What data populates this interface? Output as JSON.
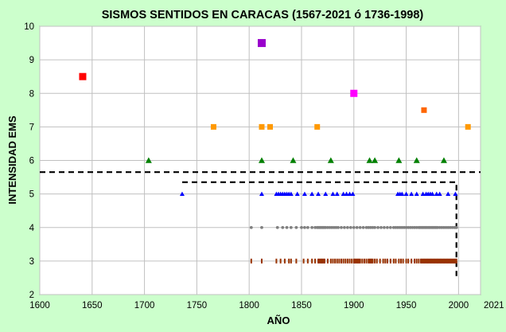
{
  "chart_data": {
    "type": "scatter",
    "title": "SISMOS SENTIDOS EN CARACAS (1567-2021 ó 1736-1998)",
    "xlabel": "AÑO",
    "ylabel": "INTENSIDAD EMS",
    "xlim": [
      1600,
      2021
    ],
    "ylim": [
      2,
      10
    ],
    "x_ticks": [
      1600,
      1650,
      1700,
      1750,
      1800,
      1850,
      1900,
      1950,
      2000,
      2021
    ],
    "y_ticks": [
      2,
      3,
      4,
      5,
      6,
      7,
      8,
      9,
      10
    ],
    "grid": true,
    "legend": "none",
    "colors": {
      "background": "#ccffcc",
      "plot_area": "#ffffff",
      "grid": "#c0c0c0",
      "int3": "#993300",
      "int4": "#808080",
      "int5": "#0000ff",
      "int6": "#008000",
      "int7": "#ff9900",
      "int7_5": "#ff6600",
      "int8": "#ff00ff",
      "int8_5": "#ff0000",
      "int9_5": "#9900cc"
    },
    "series": [
      {
        "intensity": 3,
        "marker": "tick",
        "color": "#993300",
        "x": [
          1802,
          1812,
          1826,
          1830,
          1834,
          1838,
          1840,
          1845,
          1852,
          1856,
          1860,
          1863,
          1866,
          1867,
          1868,
          1869,
          1870,
          1871,
          1872,
          1875,
          1878,
          1880,
          1882,
          1884,
          1886,
          1888,
          1890,
          1892,
          1894,
          1896,
          1898,
          1900,
          1901,
          1902,
          1903,
          1904,
          1905,
          1906,
          1908,
          1910,
          1912,
          1914,
          1915,
          1916,
          1917,
          1918,
          1920,
          1922,
          1925,
          1928,
          1930,
          1932,
          1935,
          1938,
          1940,
          1943,
          1945,
          1947,
          1950,
          1952,
          1955,
          1958,
          1960,
          1962,
          1964,
          1965,
          1966,
          1967,
          1968,
          1969,
          1970,
          1971,
          1972,
          1973,
          1974,
          1975,
          1976,
          1977,
          1978,
          1979,
          1980,
          1981,
          1982,
          1983,
          1984,
          1985,
          1986,
          1987,
          1988,
          1989,
          1990,
          1991,
          1992,
          1993,
          1994,
          1995,
          1996,
          1997,
          1998
        ],
        "y": 3
      },
      {
        "intensity": 4,
        "marker": "circle",
        "color": "#808080",
        "x": [
          1802,
          1812,
          1827,
          1832,
          1836,
          1840,
          1845,
          1850,
          1853,
          1856,
          1860,
          1863,
          1865,
          1866,
          1867,
          1868,
          1869,
          1870,
          1871,
          1872,
          1873,
          1875,
          1877,
          1879,
          1881,
          1883,
          1885,
          1888,
          1891,
          1894,
          1897,
          1900,
          1903,
          1906,
          1909,
          1912,
          1914,
          1916,
          1918,
          1920,
          1923,
          1926,
          1929,
          1932,
          1935,
          1938,
          1940,
          1942,
          1944,
          1946,
          1948,
          1950,
          1952,
          1954,
          1956,
          1958,
          1960,
          1962,
          1963,
          1964,
          1965,
          1966,
          1967,
          1968,
          1969,
          1970,
          1971,
          1972,
          1973,
          1974,
          1975,
          1976,
          1977,
          1978,
          1979,
          1980,
          1982,
          1984,
          1986,
          1988,
          1990,
          1992,
          1994,
          1996,
          1997,
          1998
        ],
        "y": 4
      },
      {
        "intensity": 5,
        "marker": "triangle",
        "color": "#0000ff",
        "x": [
          1736,
          1812,
          1826,
          1828,
          1830,
          1832,
          1834,
          1836,
          1838,
          1840,
          1846,
          1853,
          1860,
          1866,
          1873,
          1880,
          1884,
          1890,
          1893,
          1896,
          1899,
          1942,
          1944,
          1946,
          1950,
          1955,
          1960,
          1966,
          1969,
          1971,
          1973,
          1975,
          1979,
          1982,
          1990,
          1997
        ],
        "y": 5
      },
      {
        "intensity": 6,
        "marker": "triangle",
        "color": "#008000",
        "x": [
          1704,
          1812,
          1842,
          1878,
          1915,
          1920,
          1943,
          1960,
          1986
        ],
        "y": 6
      },
      {
        "intensity": 7,
        "marker": "square",
        "color": "#ff9900",
        "x": [
          1766,
          1812,
          1820,
          1865,
          2009
        ],
        "y": 7
      },
      {
        "intensity": 7.5,
        "marker": "square",
        "color": "#ff6600",
        "x": [
          1967
        ],
        "y": 7.5
      },
      {
        "intensity": 8,
        "marker": "square",
        "color": "#ff00ff",
        "x": [
          1900
        ],
        "y": 8
      },
      {
        "intensity": 8.5,
        "marker": "square",
        "color": "#ff0000",
        "x": [
          1641
        ],
        "y": 8.5
      },
      {
        "intensity": 9.5,
        "marker": "square",
        "color": "#9900cc",
        "x": [
          1812
        ],
        "y": 9.5
      }
    ],
    "reference_lines": [
      {
        "style": "dashed",
        "points": [
          [
            1600,
            5.65
          ],
          [
            2021,
            5.65
          ]
        ]
      },
      {
        "style": "dashed",
        "points": [
          [
            1736,
            5.35
          ],
          [
            1998,
            5.35
          ],
          [
            1998,
            2.55
          ]
        ]
      }
    ]
  }
}
